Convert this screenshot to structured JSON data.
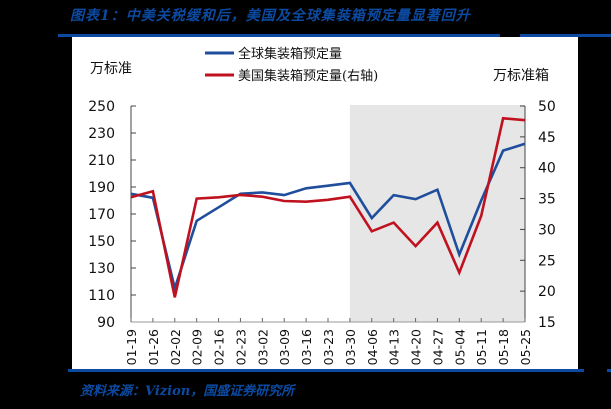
{
  "figure": {
    "title": "图表1：中美关税缓和后，美国及全球集装箱预定量显著回升",
    "source": "资料来源：Vizion，国盛证券研究所"
  },
  "axes": {
    "left_unit": "万标准",
    "right_unit": "万标准箱",
    "left_ticks": [
      "250",
      "230",
      "210",
      "190",
      "170",
      "150",
      "130",
      "110",
      "90"
    ],
    "right_ticks": [
      "50",
      "45",
      "40",
      "35",
      "30",
      "25",
      "20",
      "15"
    ]
  },
  "legend": {
    "items": [
      {
        "label": "全球集装箱预定量",
        "color": "#1f4e9c"
      },
      {
        "label": "美国集装箱预定量(右轴)",
        "color": "#c0111f"
      }
    ]
  },
  "colors": {
    "global": "#1f4e9c",
    "us": "#c0111f",
    "shade": "#e6e6e6",
    "accent": "#0b4aa0"
  },
  "chart_data": {
    "type": "line",
    "title": "图表1：中美关税缓和后，美国及全球集装箱预定量显著回升",
    "xlabel": "",
    "ylabel": "万标准",
    "ylabel_right": "万标准箱",
    "ylim": [
      90,
      250
    ],
    "ylim_right": [
      15,
      50
    ],
    "grid": false,
    "legend_position": "top",
    "shaded_region": {
      "from": "03-30",
      "to": "05-25",
      "color": "#e6e6e6"
    },
    "categories": [
      "01-19",
      "01-26",
      "02-02",
      "02-09",
      "02-16",
      "02-23",
      "03-02",
      "03-09",
      "03-16",
      "03-23",
      "03-30",
      "04-06",
      "04-13",
      "04-20",
      "04-27",
      "05-04",
      "05-11",
      "05-18",
      "05-25"
    ],
    "series": [
      {
        "name": "全球集装箱预定量",
        "axis": "left",
        "color": "#1f4e9c",
        "values": [
          185,
          182,
          115,
          165,
          175,
          185,
          186,
          184,
          189,
          191,
          193,
          167,
          184,
          181,
          188,
          140,
          180,
          217,
          222
        ]
      },
      {
        "name": "美国集装箱预定量(右轴)",
        "axis": "right",
        "color": "#c0111f",
        "values": [
          35.2,
          36.2,
          19.0,
          35.0,
          35.2,
          35.6,
          35.3,
          34.6,
          34.5,
          34.8,
          35.3,
          29.7,
          31.1,
          27.3,
          31.1,
          23.0,
          32.2,
          48.0,
          47.7
        ]
      }
    ]
  }
}
